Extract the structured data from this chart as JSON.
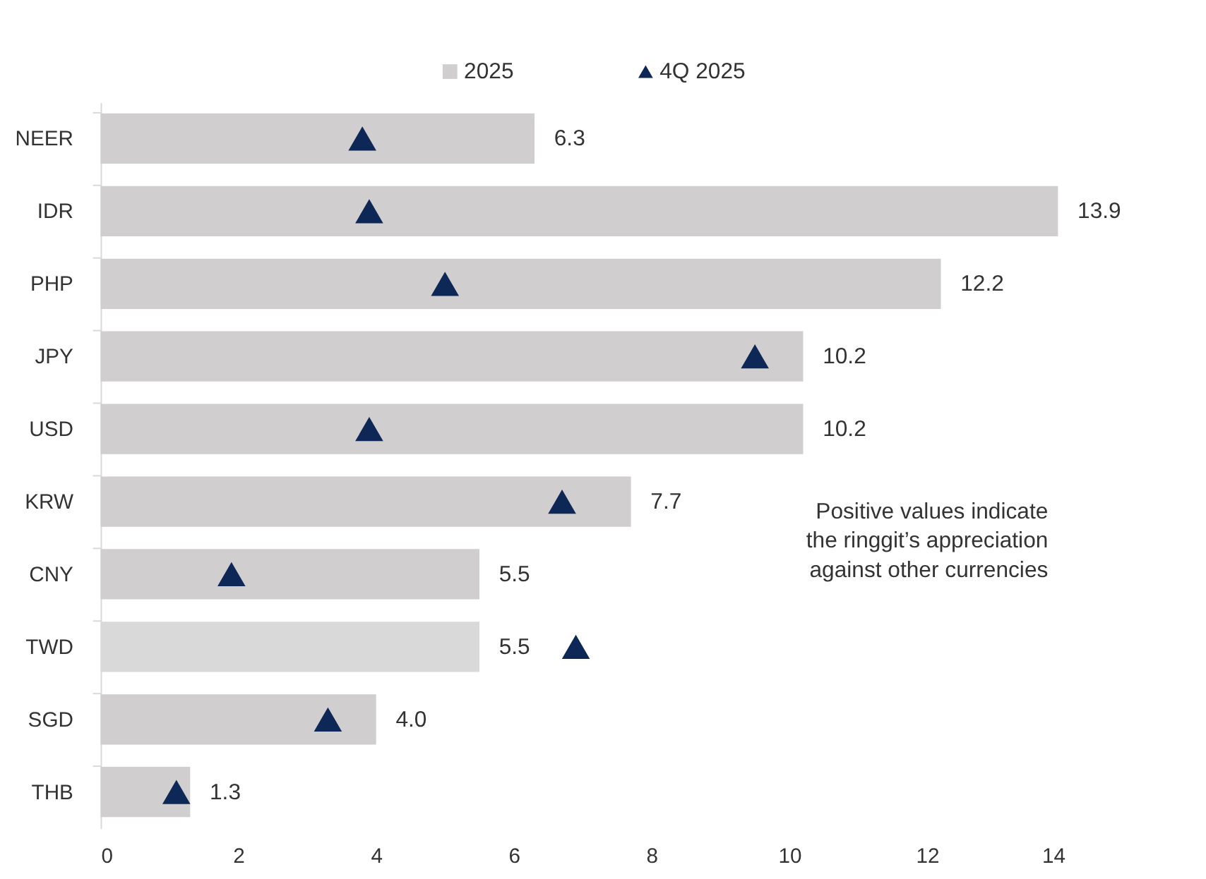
{
  "chart_data": {
    "type": "bar",
    "orientation": "horizontal",
    "categories": [
      "NEER",
      "IDR",
      "PHP",
      "JPY",
      "USD",
      "KRW",
      "CNY",
      "TWD",
      "SGD",
      "THB"
    ],
    "series": [
      {
        "name": "2025",
        "color": "#d0cecf",
        "colors": [
          "#d0cecf",
          "#d0cecf",
          "#d0cecf",
          "#d0cecf",
          "#d0cecf",
          "#d0cecf",
          "#d0cecf",
          "#d9d9d9",
          "#d0cecf",
          "#d0cecf"
        ],
        "values": [
          6.3,
          13.9,
          12.2,
          10.2,
          10.2,
          7.7,
          5.5,
          5.5,
          4.0,
          1.3
        ],
        "value_labels": [
          "6.3",
          "13.9",
          "12.2",
          "10.2",
          "10.2",
          "7.7",
          "5.5",
          "5.5",
          "4.0",
          "1.3"
        ]
      },
      {
        "name": "4Q 2025",
        "type": "scatter",
        "marker": "triangle",
        "color": "#0d2856",
        "values": [
          3.8,
          3.9,
          5.0,
          9.5,
          3.9,
          6.7,
          1.9,
          6.9,
          3.3,
          1.1
        ]
      }
    ],
    "xlim": [
      0,
      14
    ],
    "xticks": [
      0,
      2,
      4,
      6,
      8,
      10,
      12,
      14
    ],
    "grid": false,
    "legend": "top",
    "annotations": [
      "Positive values indicate\nthe ringgit’s appreciation\nagainst other currencies"
    ]
  }
}
